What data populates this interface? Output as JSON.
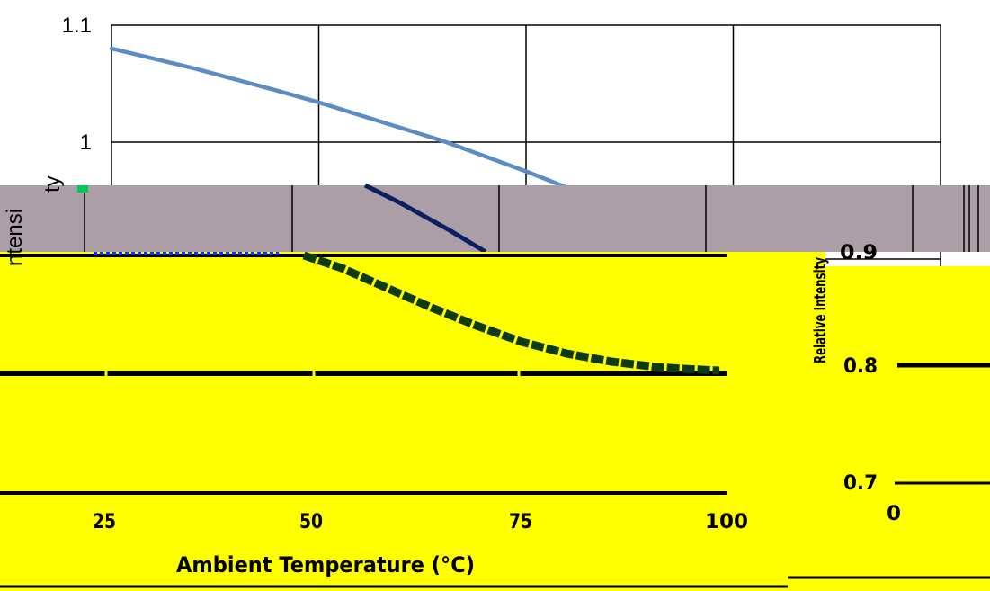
{
  "colors": {
    "background": "#ffffff",
    "series_line": "#5b8cc4",
    "series_line_overlay": "#0b1f63",
    "band_overlay": "#ab9ea6",
    "yellow_overlay": "#ffff00",
    "grid": "#000000"
  },
  "chart_data": {
    "type": "line",
    "title": "",
    "xlabel": "Ambient Temperature (°C)",
    "ylabel": "Relative Intensity",
    "ylabel_visible_fragments": [
      "ntensi",
      "ty"
    ],
    "ylim": [
      0.7,
      1.1
    ],
    "xlim": [
      0,
      100
    ],
    "y_ticks": [
      "1.1",
      "1"
    ],
    "glitch_y_ticks": [
      "0.9",
      "0.8",
      "0.7"
    ],
    "glitch_x_ticks": [
      "25",
      "50",
      "75",
      "100"
    ],
    "glitch_x_ticks_right": [
      "0"
    ],
    "grid": true,
    "series": [
      {
        "x": [
          0,
          10,
          20,
          25,
          30,
          40,
          50,
          55,
          60,
          65,
          70,
          75,
          80,
          90,
          100
        ],
        "y": [
          1.08,
          1.063,
          1.044,
          1.034,
          1.023,
          1.001,
          0.975,
          0.961,
          0.946,
          0.93,
          0.913,
          0.895,
          0.876,
          0.836,
          0.793
        ]
      }
    ]
  }
}
